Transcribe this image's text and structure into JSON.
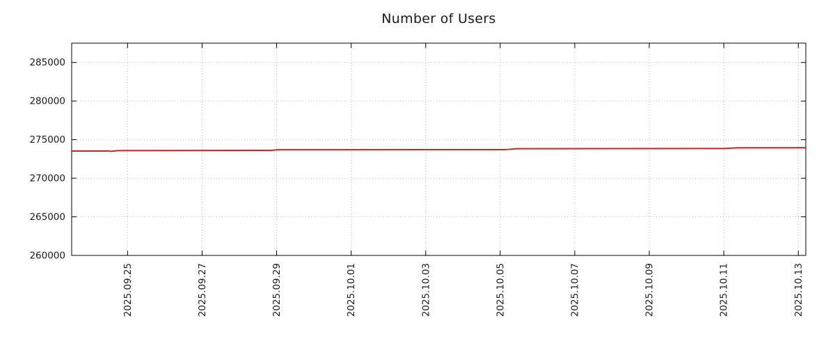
{
  "chart_data": {
    "type": "line",
    "title": "Number of Users",
    "xlabel": "",
    "ylabel": "",
    "grid": true,
    "legend": "none",
    "xlim": [
      -1.5,
      18.2
    ],
    "ylim": [
      260000,
      287500
    ],
    "y_ticks": [
      260000,
      265000,
      270000,
      275000,
      280000,
      285000
    ],
    "y_tick_labels": [
      "260000",
      "265000",
      "270000",
      "275000",
      "280000",
      "285000"
    ],
    "x_tick_positions": [
      0,
      2,
      4,
      6,
      8,
      10,
      12,
      14,
      16,
      18
    ],
    "x_tick_labels": [
      "2025.09.25",
      "2025.09.27",
      "2025.09.29",
      "2025.10.01",
      "2025.10.03",
      "2025.10.05",
      "2025.10.07",
      "2025.10.09",
      "2025.10.11",
      "2025.10.13"
    ],
    "colors": {
      "line": "#cc2222",
      "grid": "#b8b8b8",
      "axis": "#000000",
      "text": "#1a1a1a",
      "background": "#ffffff"
    },
    "series": [
      {
        "name": "Number of Users",
        "color": "#cc2222",
        "points": [
          [
            -1.5,
            273530
          ],
          [
            -0.5,
            273520
          ],
          [
            -0.45,
            273490
          ],
          [
            -0.25,
            273580
          ],
          [
            3.85,
            273610
          ],
          [
            4.05,
            273690
          ],
          [
            10.15,
            273710
          ],
          [
            10.45,
            273830
          ],
          [
            16.05,
            273850
          ],
          [
            16.35,
            273940
          ],
          [
            18.2,
            273950
          ]
        ]
      }
    ]
  }
}
